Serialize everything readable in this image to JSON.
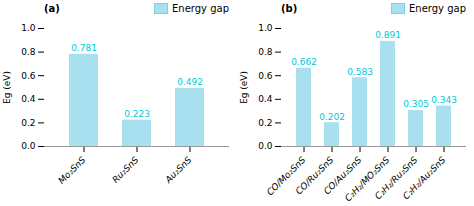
{
  "chart_data": [
    {
      "type": "bar",
      "title": "(a)",
      "categories": [
        "Mo₂SnS",
        "Ru₂SnS",
        "Au₂SnS"
      ],
      "series": [
        {
          "name": "Energy gap",
          "color": "#a8e0f0",
          "values": [
            0.781,
            0.223,
            0.492
          ]
        }
      ],
      "ylabel": "Eg (eV)",
      "ylim": [
        0.0,
        1.0
      ],
      "yticks": [
        {
          "value": 0,
          "label": "0.0"
        },
        0.2,
        0.4,
        0.6,
        0.8,
        {
          "value": 1,
          "label": "1.0"
        }
      ],
      "legend": "upper right",
      "data_labels": true,
      "grid": false
    },
    {
      "type": "bar",
      "title": "(b)",
      "categories": [
        "CO/Mo₂SnS",
        "CO/Ru₂SnS",
        "CO/Au₂SnS",
        "C₂H₂/MO₂SnS",
        "C₂H₂/Ru₂SnS",
        "C₂H₂/Au₂SnS"
      ],
      "series": [
        {
          "name": "Energy gap",
          "color": "#a8e0f0",
          "values": [
            0.662,
            0.202,
            0.583,
            0.891,
            0.305,
            0.343
          ]
        }
      ],
      "ylabel": "Eg (eV)",
      "ylim": [
        0.0,
        1.0
      ],
      "yticks": [
        {
          "value": 0,
          "label": "0.0"
        },
        0.2,
        0.4,
        0.6,
        0.8,
        {
          "value": 1,
          "label": "1.0"
        }
      ],
      "legend": "upper right",
      "data_labels": true,
      "grid": false
    }
  ]
}
